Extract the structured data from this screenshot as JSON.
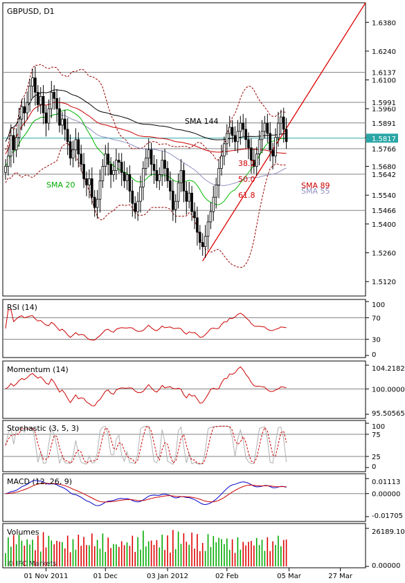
{
  "chart_data": [
    {
      "type": "candlestick",
      "title": "GBPUSD, D1",
      "y_ticks": [
        1.638,
        1.624,
        1.61,
        1.596,
        1.582,
        1.568,
        1.554,
        1.54,
        1.526,
        1.512
      ],
      "y_tick_labels": [
        "1.6380",
        "1.6240",
        "1.6100",
        "1.5960",
        "1.5820",
        "1.5680",
        "1.5540",
        "1.5400",
        "1.5260",
        "1.5120"
      ],
      "ylim": [
        1.505,
        1.6475
      ],
      "horizontal_levels": [
        {
          "value": 1.6137,
          "label": "1.6137"
        },
        {
          "value": 1.5991,
          "label": "1.5991"
        },
        {
          "value": 1.5891,
          "label": "1.5891"
        },
        {
          "value": 1.5766,
          "label": "1.5766"
        },
        {
          "value": 1.5642,
          "label": "1.5642"
        },
        {
          "value": 1.5466,
          "label": "1.5466"
        }
      ],
      "current_price": {
        "value": 1.5817,
        "label": "1.5817",
        "color": "#2aa6a6"
      },
      "annotations": {
        "sma144": "SMA 144",
        "sma89": "SMA 89",
        "sma55": "SMA 55",
        "sma20": "SMA 20",
        "fib382": "38.2",
        "fib50": "50.0",
        "fib618": "61.8"
      },
      "colors": {
        "up": "#00aa00",
        "down": "#dd0000",
        "sma144": "#000000",
        "sma89": "#cc0000",
        "sma55": "#8f8fc0",
        "sma20": "#00bb00",
        "bollinger": "#990000",
        "fib": "#dd0000"
      },
      "close": [
        1.568,
        1.573,
        1.583,
        1.576,
        1.582,
        1.591,
        1.597,
        1.594,
        1.599,
        1.607,
        1.611,
        1.604,
        1.598,
        1.602,
        1.594,
        1.589,
        1.596,
        1.604,
        1.601,
        1.596,
        1.588,
        1.591,
        1.586,
        1.58,
        1.572,
        1.576,
        1.581,
        1.574,
        1.569,
        1.562,
        1.559,
        1.562,
        1.553,
        1.548,
        1.552,
        1.561,
        1.568,
        1.574,
        1.569,
        1.564,
        1.566,
        1.571,
        1.57,
        1.565,
        1.561,
        1.564,
        1.556,
        1.55,
        1.546,
        1.551,
        1.558,
        1.567,
        1.572,
        1.576,
        1.569,
        1.566,
        1.561,
        1.564,
        1.571,
        1.567,
        1.561,
        1.556,
        1.547,
        1.551,
        1.56,
        1.566,
        1.556,
        1.551,
        1.555,
        1.546,
        1.543,
        1.536,
        1.531,
        1.529,
        1.534,
        1.541,
        1.546,
        1.553,
        1.559,
        1.567,
        1.573,
        1.579,
        1.584,
        1.587,
        1.583,
        1.58,
        1.585,
        1.589,
        1.586,
        1.581,
        1.577,
        1.571,
        1.568,
        1.574,
        1.581,
        1.585,
        1.589,
        1.584,
        1.576,
        1.573,
        1.582,
        1.589,
        1.592,
        1.586,
        1.58
      ]
    },
    {
      "type": "line",
      "title": "RSI (14)",
      "y_ticks": [
        100,
        70,
        30,
        0
      ],
      "y_tick_labels": [
        "100",
        "70",
        "30",
        "0"
      ],
      "ylim": [
        0,
        100
      ],
      "levels": [
        70,
        30
      ]
    },
    {
      "type": "line",
      "title": "Momentum (14)",
      "y_ticks": [
        104.2182,
        100.0,
        95.50565
      ],
      "y_tick_labels": [
        "104.2182",
        "100.0000",
        "95.50565"
      ],
      "ylim": [
        95.50565,
        104.2182
      ],
      "levels": [
        100
      ]
    },
    {
      "type": "line",
      "title": "Stochastic (3, 5, 3)",
      "y_ticks": [
        100,
        75,
        25,
        0
      ],
      "y_tick_labels": [
        "100",
        "75",
        "25",
        "0"
      ],
      "ylim": [
        0,
        100
      ],
      "levels": [
        75,
        25
      ]
    },
    {
      "type": "line",
      "title": "MACD (12, 26, 9)",
      "y_ticks": [
        0.01113,
        0.0,
        -0.01705
      ],
      "y_tick_labels": [
        "0.01113",
        "0.00000",
        "-0.01705"
      ],
      "ylim": [
        -0.01705,
        0.01113
      ],
      "levels": [
        0
      ]
    },
    {
      "type": "bar",
      "title": "Volumes",
      "y_ticks": [
        26189.1,
        0.0
      ],
      "y_tick_labels": [
        "26189.10",
        "0.00000"
      ],
      "ylim": [
        0,
        26189.1
      ]
    }
  ],
  "x_axis": {
    "labels": [
      "01 Nov 2011",
      "01 Dec",
      "03 Jan 2012",
      "02 Feb",
      "05 Mar",
      "27 Mar"
    ],
    "label_bar_index": [
      15,
      37,
      60,
      82,
      105,
      124
    ]
  },
  "watermark": "© IFC Markets"
}
